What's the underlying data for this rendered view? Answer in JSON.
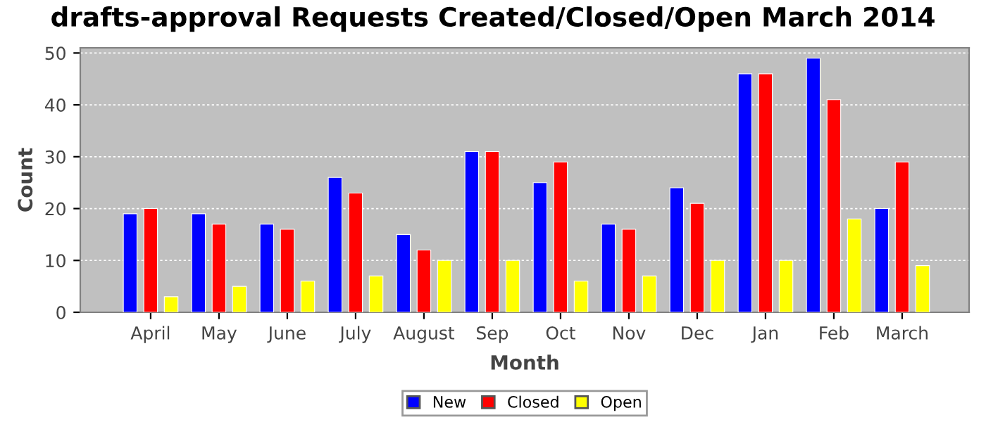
{
  "chart_data": {
    "type": "bar",
    "title": "drafts-approval Requests Created/Closed/Open March 2014",
    "xlabel": "Month",
    "ylabel": "Count",
    "categories": [
      "April",
      "May",
      "June",
      "July",
      "August",
      "Sep",
      "Oct",
      "Nov",
      "Dec",
      "Jan",
      "Feb",
      "March"
    ],
    "series": [
      {
        "name": "New",
        "color": "#0000ff",
        "values": [
          19,
          19,
          17,
          26,
          15,
          31,
          25,
          17,
          24,
          46,
          49,
          20
        ]
      },
      {
        "name": "Closed",
        "color": "#ff0000",
        "values": [
          20,
          17,
          16,
          23,
          12,
          31,
          29,
          16,
          21,
          46,
          41,
          29
        ]
      },
      {
        "name": "Open",
        "color": "#ffff00",
        "values": [
          3,
          5,
          6,
          7,
          10,
          10,
          6,
          7,
          10,
          10,
          18,
          9
        ]
      }
    ],
    "ylim": [
      0,
      51
    ],
    "yticks": [
      0,
      10,
      20,
      30,
      40,
      50
    ],
    "grid": "y",
    "legend": "bottom"
  }
}
